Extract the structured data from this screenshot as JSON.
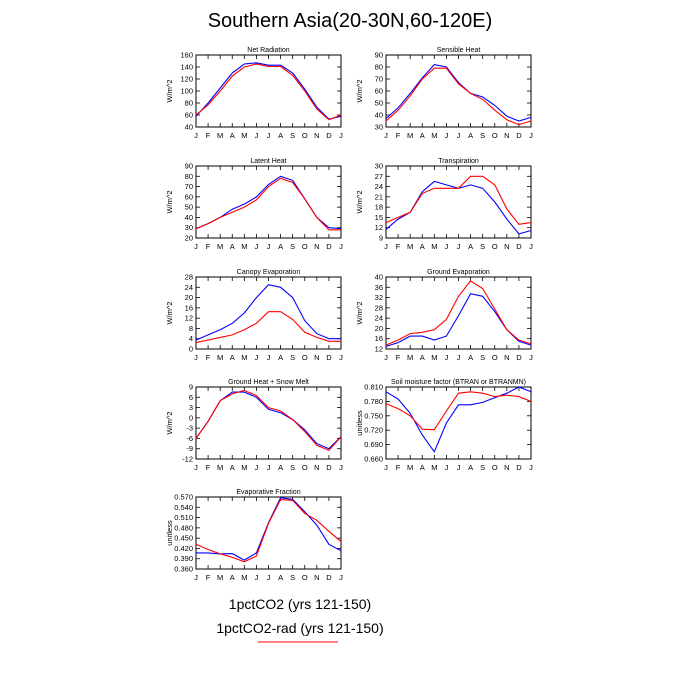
{
  "title": "Southern Asia(20-30N,60-120E)",
  "months": [
    "J",
    "F",
    "M",
    "A",
    "M",
    "J",
    "J",
    "A",
    "S",
    "O",
    "N",
    "D",
    "J"
  ],
  "legend": [
    {
      "name": "1pctCO2 (yrs 121-150)",
      "color": "#0000ff"
    },
    {
      "name": "1pctCO2-rad (yrs 121-150)",
      "color": "#ff0000"
    }
  ],
  "chart_data": [
    {
      "type": "line",
      "title": "Net Radiation",
      "ylabel": "W/m^2",
      "ylim": [
        40,
        160
      ],
      "yticks": [
        "40",
        "60",
        "80",
        "100",
        "120",
        "140",
        "160"
      ],
      "series": [
        {
          "color": "#0000ff",
          "values": [
            58,
            80,
            105,
            130,
            145,
            147,
            143,
            143,
            130,
            103,
            73,
            53,
            58
          ]
        },
        {
          "color": "#ff0000",
          "values": [
            60,
            77,
            100,
            125,
            140,
            145,
            141,
            141,
            126,
            100,
            70,
            52,
            60
          ]
        }
      ]
    },
    {
      "type": "line",
      "title": "Sensible Heat",
      "ylabel": "W/m^2",
      "ylim": [
        30,
        90
      ],
      "yticks": [
        "30",
        "40",
        "50",
        "60",
        "70",
        "80",
        "90"
      ],
      "series": [
        {
          "color": "#0000ff",
          "values": [
            37,
            46,
            58,
            71,
            82,
            80,
            67,
            58,
            55,
            48,
            39,
            35,
            38
          ]
        },
        {
          "color": "#ff0000",
          "values": [
            35,
            44,
            56,
            70,
            79,
            79,
            66,
            58,
            53,
            44,
            36,
            32,
            35
          ]
        }
      ]
    },
    {
      "type": "line",
      "title": "Latent Heat",
      "ylabel": "W/m^2",
      "ylim": [
        20,
        90
      ],
      "yticks": [
        "20",
        "30",
        "40",
        "50",
        "60",
        "70",
        "80",
        "90"
      ],
      "series": [
        {
          "color": "#0000ff",
          "values": [
            29,
            34,
            40,
            48,
            53,
            60,
            72,
            80,
            76,
            58,
            40,
            30,
            29
          ]
        },
        {
          "color": "#ff0000",
          "values": [
            29,
            34,
            40,
            45,
            50,
            57,
            70,
            78,
            74,
            58,
            40,
            28,
            28
          ]
        }
      ]
    },
    {
      "type": "line",
      "title": "Transpiration",
      "ylabel": "W/m^2",
      "ylim": [
        9,
        30
      ],
      "yticks": [
        "9",
        "12",
        "15",
        "18",
        "21",
        "24",
        "27",
        "30"
      ],
      "series": [
        {
          "color": "#0000ff",
          "values": [
            11.5,
            14.5,
            16.5,
            22.5,
            25.5,
            24.5,
            23.5,
            24.5,
            23.5,
            19.5,
            14.5,
            10.2,
            11.2
          ]
        },
        {
          "color": "#ff0000",
          "values": [
            13.5,
            15.0,
            16.5,
            22.0,
            23.5,
            23.5,
            23.5,
            27.0,
            27.0,
            24.5,
            17.5,
            13.0,
            13.5
          ]
        }
      ]
    },
    {
      "type": "line",
      "title": "Canopy Evaporation",
      "ylabel": "W/m^2",
      "ylim": [
        0,
        28
      ],
      "yticks": [
        "0",
        "4",
        "8",
        "12",
        "16",
        "20",
        "24",
        "28"
      ],
      "series": [
        {
          "color": "#0000ff",
          "values": [
            3.5,
            5.5,
            7.5,
            10,
            14,
            20,
            25,
            24,
            20,
            11,
            6,
            4,
            4
          ]
        },
        {
          "color": "#ff0000",
          "values": [
            2.5,
            3.5,
            4.5,
            5.5,
            7.5,
            10,
            14.5,
            14.5,
            11.5,
            6.5,
            4.5,
            3,
            3
          ]
        }
      ]
    },
    {
      "type": "line",
      "title": "Ground Evaporation",
      "ylabel": "W/m^2",
      "ylim": [
        12,
        40
      ],
      "yticks": [
        "12",
        "16",
        "20",
        "24",
        "28",
        "32",
        "36",
        "40"
      ],
      "series": [
        {
          "color": "#0000ff",
          "values": [
            13.0,
            14.5,
            17.0,
            17.0,
            15.5,
            17.0,
            25.0,
            33.5,
            32.5,
            26.5,
            19.5,
            15.0,
            13.5
          ]
        },
        {
          "color": "#ff0000",
          "values": [
            13.5,
            15.5,
            18.0,
            18.5,
            19.5,
            23.5,
            32.5,
            38.5,
            35.5,
            27.5,
            19.5,
            15.5,
            14.0
          ]
        }
      ]
    },
    {
      "type": "line",
      "title": "Ground Heat + Snow Melt",
      "ylabel": "W/m^2",
      "ylim": [
        -12,
        9
      ],
      "yticks": [
        "-12",
        "-9",
        "-6",
        "-3",
        "0",
        "3",
        "6",
        "9"
      ],
      "series": [
        {
          "color": "#0000ff",
          "values": [
            -6,
            -1,
            5,
            7.5,
            7.5,
            6,
            2.5,
            1.5,
            -0.5,
            -3.5,
            -7.5,
            -9.0,
            -5.5
          ]
        },
        {
          "color": "#ff0000",
          "values": [
            -6,
            -1,
            5,
            7,
            8,
            6.5,
            3,
            2,
            -0.5,
            -4,
            -8,
            -9.5,
            -5.5
          ]
        }
      ]
    },
    {
      "type": "line",
      "title": "Soil moisture factor (BTRAN or BTRANMN)",
      "ylabel": "unitless",
      "ylim": [
        0.66,
        0.81
      ],
      "yticks": [
        "0.660",
        "0.690",
        "0.720",
        "0.750",
        "0.780",
        "0.810"
      ],
      "series": [
        {
          "color": "#0000ff",
          "values": [
            0.8,
            0.785,
            0.755,
            0.71,
            0.675,
            0.735,
            0.773,
            0.773,
            0.778,
            0.788,
            0.797,
            0.81,
            0.8
          ]
        },
        {
          "color": "#ff0000",
          "values": [
            0.775,
            0.765,
            0.75,
            0.722,
            0.721,
            0.76,
            0.797,
            0.8,
            0.797,
            0.79,
            0.793,
            0.79,
            0.78
          ]
        }
      ]
    },
    {
      "type": "line",
      "title": "Evaporative Fraction",
      "ylabel": "unitless",
      "ylim": [
        0.36,
        0.57
      ],
      "yticks": [
        "0.360",
        "0.390",
        "0.420",
        "0.450",
        "0.480",
        "0.510",
        "0.540",
        "0.570"
      ],
      "series": [
        {
          "color": "#0000ff",
          "values": [
            0.407,
            0.407,
            0.404,
            0.405,
            0.386,
            0.407,
            0.495,
            0.568,
            0.563,
            0.527,
            0.488,
            0.432,
            0.413
          ]
        },
        {
          "color": "#ff0000",
          "values": [
            0.432,
            0.417,
            0.404,
            0.394,
            0.381,
            0.398,
            0.493,
            0.563,
            0.56,
            0.522,
            0.502,
            0.47,
            0.44
          ]
        }
      ]
    }
  ]
}
